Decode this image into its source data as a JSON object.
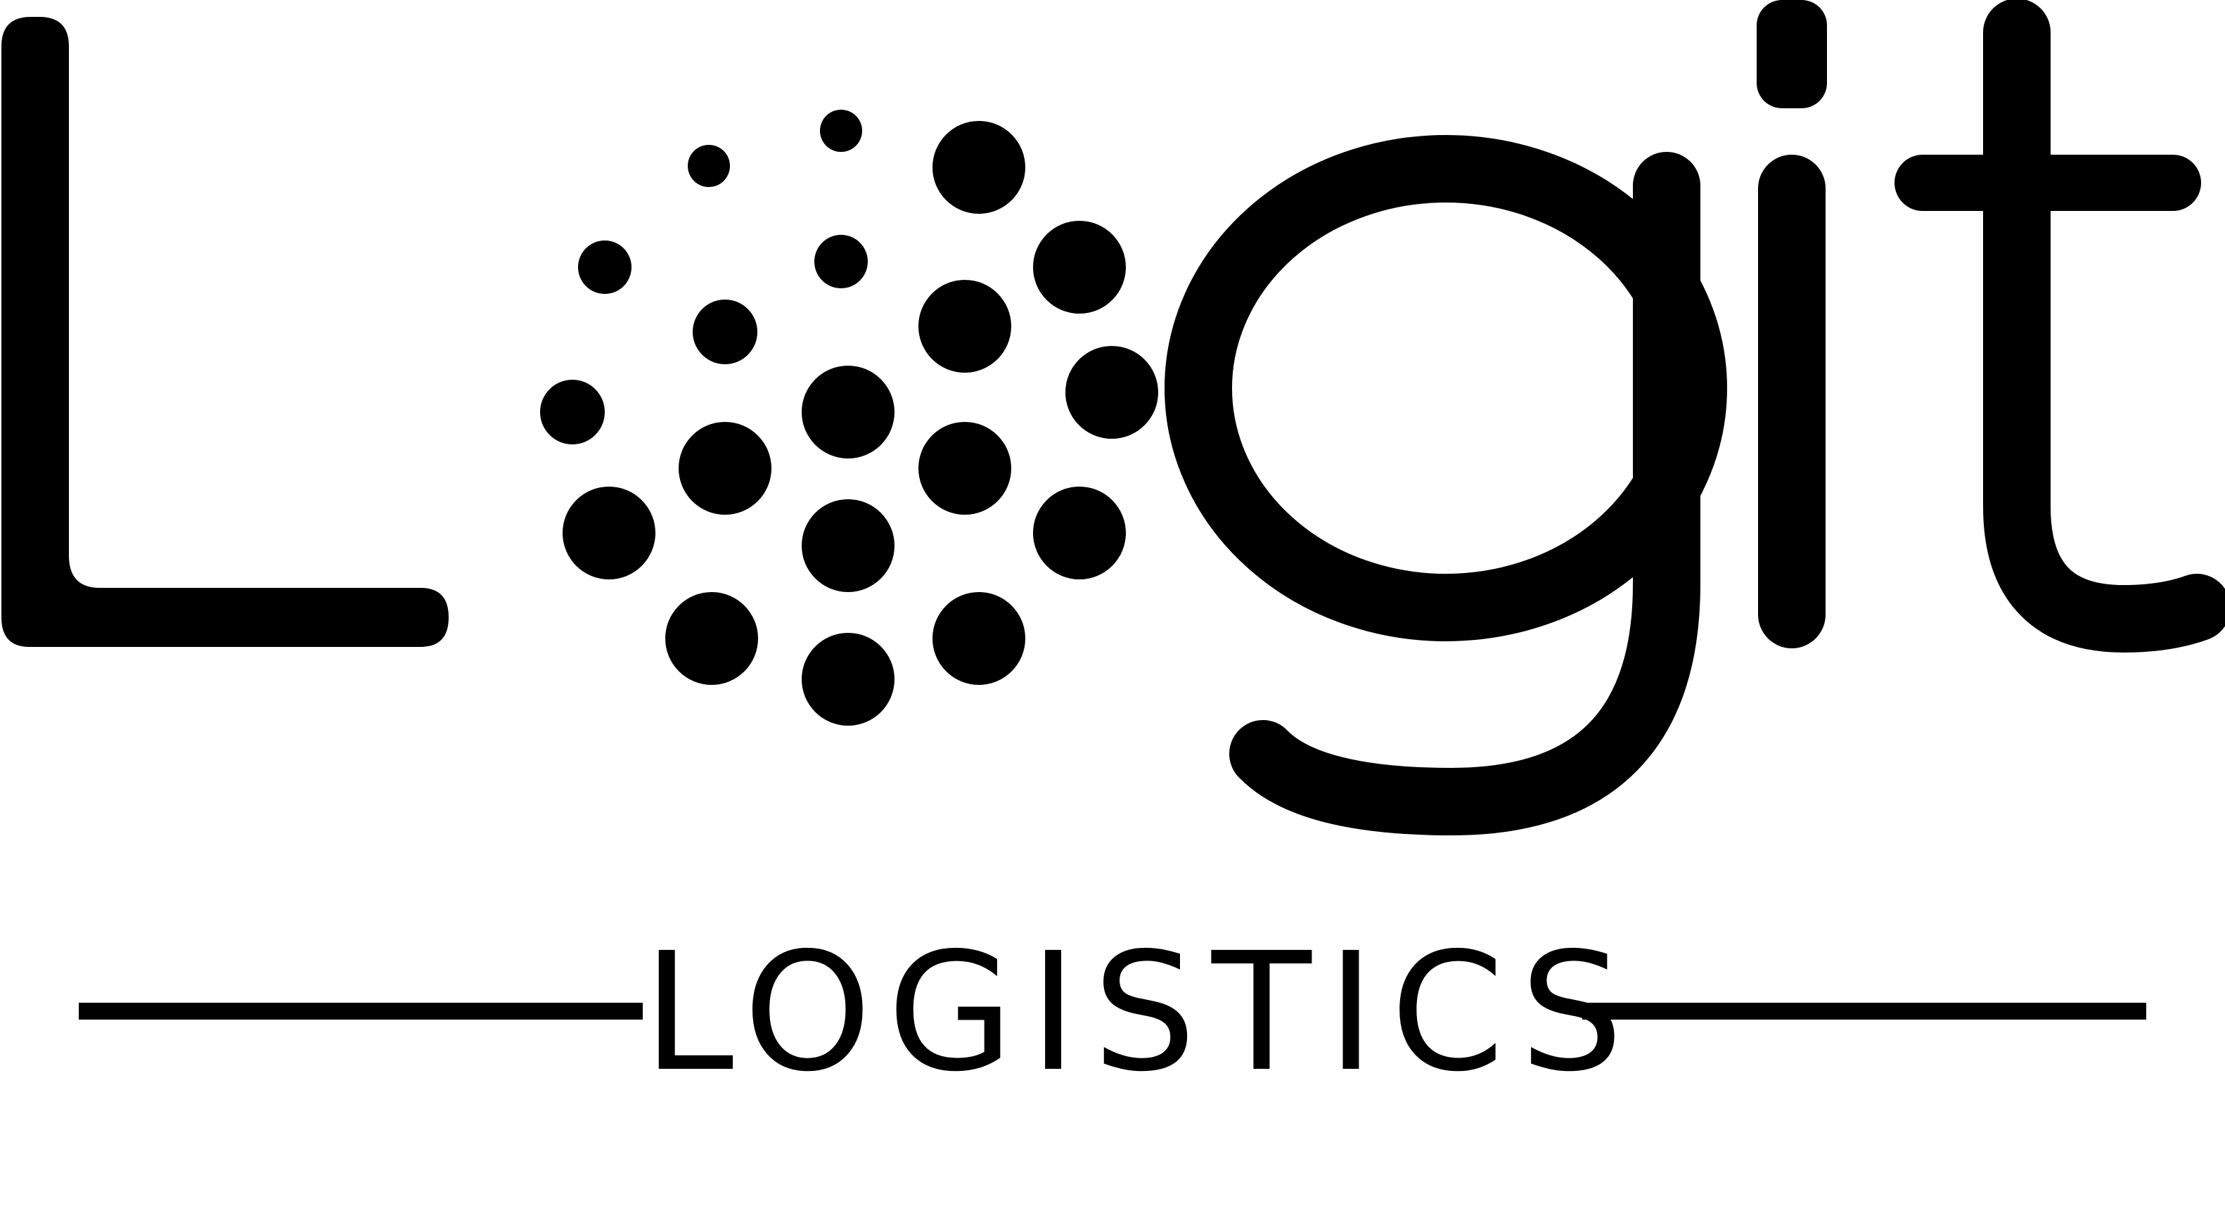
{
  "brand": {
    "wordmark": "Logit",
    "tagline": "LOGISTICS"
  },
  "colors": {
    "ink": "#000000",
    "background": "#ffffff"
  }
}
